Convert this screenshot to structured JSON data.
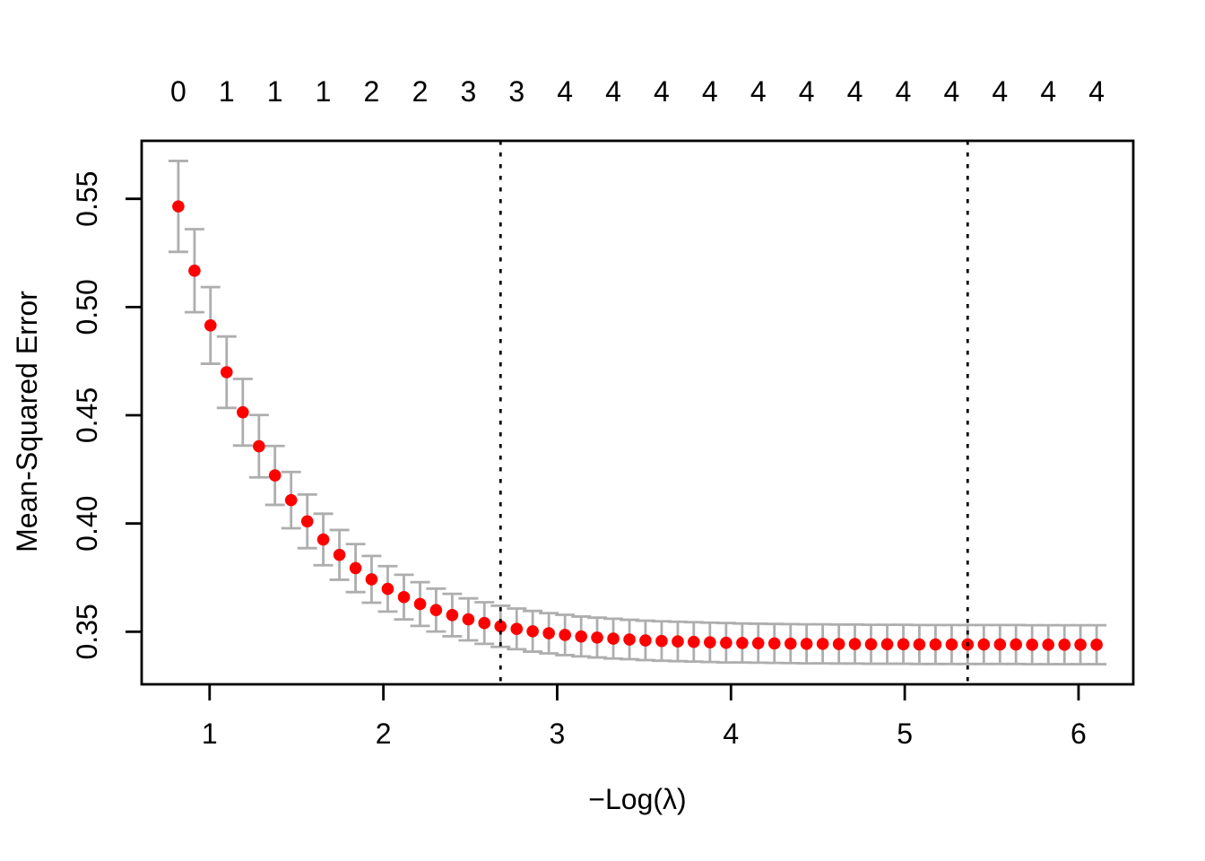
{
  "figure": {
    "background": "#FFFFFF",
    "description": "Cross-validation curve: Mean-Squared Error versus -Log(lambda) with one-standard-error bars"
  },
  "chart_data": {
    "type": "scatter",
    "title": "",
    "xlabel": "−Log(λ)",
    "ylabel": "Mean-Squared Error",
    "grid": false,
    "legend": null,
    "xlim": [
      0.609,
      6.315
    ],
    "ylim": [
      0.3257,
      0.5768
    ],
    "x_ticks": {
      "at": [
        1,
        2,
        3,
        4,
        5,
        6
      ],
      "labels": [
        "1",
        "2",
        "3",
        "4",
        "5",
        "6"
      ]
    },
    "y_ticks": {
      "at": [
        0.35,
        0.4,
        0.45,
        0.5,
        0.55
      ],
      "labels": [
        "0.35",
        "0.40",
        "0.45",
        "0.50",
        "0.55"
      ]
    },
    "point_color": "#FF0000",
    "errorbar_color": "#AEAEAE",
    "vline_color": "#000000",
    "axis_color": "#000000",
    "vlines": [
      2.674,
      5.362
    ],
    "vline_style": "dotted",
    "x": [
      0.82,
      0.913,
      1.005,
      1.098,
      1.191,
      1.284,
      1.376,
      1.469,
      1.562,
      1.654,
      1.747,
      1.84,
      1.932,
      2.025,
      2.118,
      2.211,
      2.303,
      2.396,
      2.489,
      2.581,
      2.674,
      2.767,
      2.859,
      2.952,
      3.045,
      3.138,
      3.23,
      3.323,
      3.416,
      3.508,
      3.601,
      3.694,
      3.786,
      3.879,
      3.972,
      4.065,
      4.157,
      4.25,
      4.343,
      4.435,
      4.528,
      4.621,
      4.713,
      4.806,
      4.899,
      4.992,
      5.084,
      5.177,
      5.27,
      5.362,
      5.455,
      5.548,
      5.64,
      5.733,
      5.826,
      5.919,
      6.011,
      6.104
    ],
    "series": [
      {
        "name": "Mean-Squared Error",
        "values": [
          0.5465,
          0.5168,
          0.4915,
          0.4699,
          0.4514,
          0.4357,
          0.4222,
          0.4108,
          0.401,
          0.3926,
          0.3855,
          0.3794,
          0.3742,
          0.3698,
          0.366,
          0.3628,
          0.36,
          0.3577,
          0.3557,
          0.354,
          0.3525,
          0.3513,
          0.3502,
          0.3493,
          0.3485,
          0.3478,
          0.3473,
          0.3468,
          0.3464,
          0.346,
          0.3457,
          0.3455,
          0.3453,
          0.3451,
          0.3449,
          0.3448,
          0.3447,
          0.3446,
          0.3445,
          0.3444,
          0.3444,
          0.3443,
          0.3443,
          0.3442,
          0.3442,
          0.3442,
          0.3441,
          0.3441,
          0.3441,
          0.3441,
          0.3441,
          0.3441,
          0.3441,
          0.344,
          0.344,
          0.344,
          0.344,
          0.344
        ]
      }
    ],
    "upper": [
      0.5675,
      0.536,
      0.5092,
      0.4864,
      0.4668,
      0.4501,
      0.4358,
      0.4238,
      0.4134,
      0.4045,
      0.397,
      0.3905,
      0.385,
      0.3803,
      0.3763,
      0.3729,
      0.3699,
      0.3675,
      0.3654,
      0.3636,
      0.362,
      0.3607,
      0.3596,
      0.3586,
      0.3578,
      0.357,
      0.3565,
      0.356,
      0.3555,
      0.3551,
      0.3548,
      0.3546,
      0.3544,
      0.3542,
      0.354,
      0.3538,
      0.3537,
      0.3536,
      0.3535,
      0.3534,
      0.3534,
      0.3533,
      0.3533,
      0.3532,
      0.3532,
      0.3532,
      0.3531,
      0.3531,
      0.3531,
      0.3531,
      0.3531,
      0.3531,
      0.3531,
      0.353,
      0.353,
      0.353,
      0.353,
      0.353
    ],
    "lower": [
      0.5255,
      0.4976,
      0.4738,
      0.4534,
      0.436,
      0.4213,
      0.4086,
      0.3978,
      0.3886,
      0.3807,
      0.374,
      0.3683,
      0.3634,
      0.3593,
      0.3557,
      0.3527,
      0.3501,
      0.3479,
      0.346,
      0.3444,
      0.343,
      0.3419,
      0.3408,
      0.34,
      0.3392,
      0.3386,
      0.3381,
      0.3376,
      0.3373,
      0.3369,
      0.3366,
      0.3364,
      0.3362,
      0.336,
      0.3358,
      0.3358,
      0.3357,
      0.3356,
      0.3355,
      0.3354,
      0.3354,
      0.3353,
      0.3353,
      0.3352,
      0.3352,
      0.3352,
      0.3351,
      0.3351,
      0.3351,
      0.3351,
      0.3351,
      0.3351,
      0.3351,
      0.335,
      0.335,
      0.335,
      0.335,
      0.335
    ],
    "top_axis": {
      "title": "",
      "labels": [
        "0",
        "1",
        "1",
        "1",
        "2",
        "2",
        "3",
        "3",
        "4",
        "4",
        "4",
        "4",
        "4",
        "4",
        "4",
        "4",
        "4",
        "4",
        "4",
        "4"
      ],
      "at_x": [
        0.82,
        1.098,
        1.376,
        1.654,
        1.932,
        2.211,
        2.489,
        2.767,
        3.045,
        3.323,
        3.601,
        3.879,
        4.157,
        4.435,
        4.713,
        4.992,
        5.27,
        5.548,
        5.826,
        6.104
      ]
    }
  }
}
